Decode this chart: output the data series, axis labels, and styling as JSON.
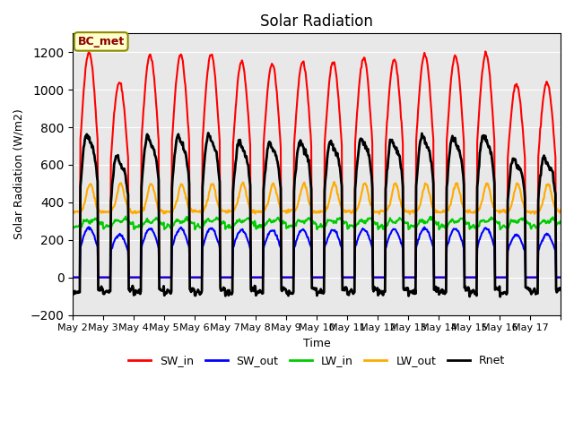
{
  "title": "Solar Radiation",
  "ylabel": "Solar Radiation (W/m2)",
  "xlabel": "Time",
  "annotation": "BC_met",
  "ylim": [
    -200,
    1300
  ],
  "yticks": [
    -200,
    0,
    200,
    400,
    600,
    800,
    1000,
    1200
  ],
  "xticklabels": [
    "May 2",
    "May 3",
    "May 4",
    "May 5",
    "May 6",
    "May 7",
    "May 8",
    "May 9",
    "May 10",
    "May 11",
    "May 12",
    "May 13",
    "May 14",
    "May 15",
    "May 16",
    "May 17"
  ],
  "series_colors": {
    "SW_in": "#ff0000",
    "SW_out": "#0000ff",
    "LW_in": "#00cc00",
    "LW_out": "#ffaa00",
    "Rnet": "#000000"
  },
  "series_linewidths": {
    "SW_in": 1.5,
    "SW_out": 1.5,
    "LW_in": 1.5,
    "LW_out": 1.5,
    "Rnet": 2.0
  },
  "background_color": "#e8e8e8",
  "legend_ncol": 5,
  "sw_peaks": [
    1200,
    1040,
    1185,
    1185,
    1190,
    1150,
    1140,
    1150,
    1150,
    1170,
    1160,
    1190,
    1180,
    1190,
    1030,
    1040
  ]
}
